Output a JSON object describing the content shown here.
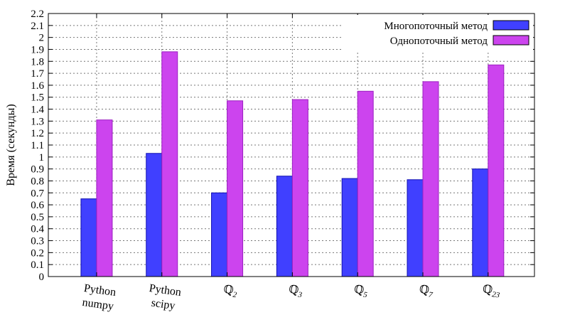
{
  "chart_data": {
    "type": "bar",
    "title": "",
    "xlabel": "",
    "ylabel": "Время (секунды)",
    "ylim": [
      0,
      2.2
    ],
    "ytick_step": 0.1,
    "grid": true,
    "legend_position": "top-right",
    "categories": [
      {
        "main": "Python",
        "sub": "",
        "line2": "numpy"
      },
      {
        "main": "Python",
        "sub": "",
        "line2": "scipy"
      },
      {
        "main": "ℚ",
        "sub": "2",
        "line2": ""
      },
      {
        "main": "ℚ",
        "sub": "3",
        "line2": ""
      },
      {
        "main": "ℚ",
        "sub": "5",
        "line2": ""
      },
      {
        "main": "ℚ",
        "sub": "7",
        "line2": ""
      },
      {
        "main": "ℚ",
        "sub": "23",
        "line2": ""
      }
    ],
    "series": [
      {
        "name": "Многопоточный метод",
        "color": "#4040ff",
        "values": [
          0.65,
          1.03,
          0.7,
          0.84,
          0.82,
          0.81,
          0.9
        ]
      },
      {
        "name": "Однопоточный метод",
        "color": "#cc44ee",
        "values": [
          1.31,
          1.88,
          1.47,
          1.48,
          1.55,
          1.63,
          1.77
        ]
      }
    ]
  }
}
